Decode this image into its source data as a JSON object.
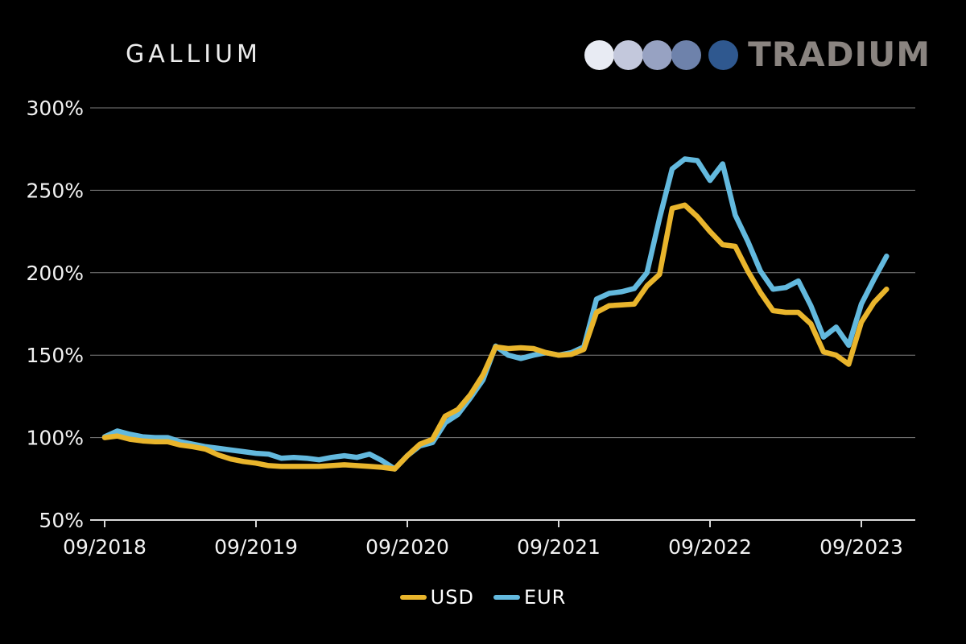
{
  "header": {
    "title": "GALLIUM",
    "logo": {
      "text": "TRADIUM",
      "text_color": "#8a8480",
      "dot_colors": [
        "#e8ebf3",
        "#c3c8dc",
        "#97a2c2",
        "#6e82ab",
        "#2f588f"
      ]
    }
  },
  "chart_data": {
    "type": "line",
    "title": "GALLIUM",
    "x_unit": "month",
    "x_start": "09/2018",
    "x_end": "11/2023",
    "ylim": [
      50,
      300
    ],
    "grid": "horizontal",
    "legend_position": "bottom-center",
    "background_color": "#000000",
    "gridline_color": "#7e7e7e",
    "axis_color": "#d8d8d8",
    "y_ticks": [
      {
        "value": 300,
        "label": "300%"
      },
      {
        "value": 250,
        "label": "250%"
      },
      {
        "value": 200,
        "label": "200%"
      },
      {
        "value": 150,
        "label": "150%"
      },
      {
        "value": 100,
        "label": "100%"
      },
      {
        "value": 50,
        "label": "50%"
      }
    ],
    "x_tick_labels": [
      {
        "index": 0,
        "label": "09/2018"
      },
      {
        "index": 12,
        "label": "09/2019"
      },
      {
        "index": 24,
        "label": "09/2020"
      },
      {
        "index": 36,
        "label": "09/2021"
      },
      {
        "index": 48,
        "label": "09/2022"
      },
      {
        "index": 60,
        "label": "09/2023"
      }
    ],
    "draw_order": [
      "EUR",
      "USD"
    ],
    "series": [
      {
        "name": "USD",
        "color": "#e9b52c",
        "values": [
          100,
          101,
          99,
          98,
          97.5,
          97.5,
          95.5,
          94.5,
          93,
          89.5,
          87,
          85.5,
          84.5,
          83,
          82.5,
          82.5,
          82.5,
          82.5,
          83,
          83.5,
          83,
          82.5,
          82,
          81,
          89,
          96,
          99,
          113,
          117,
          126,
          138,
          155,
          154,
          154.5,
          154,
          151.5,
          150,
          150.5,
          153.5,
          176,
          180,
          180.5,
          181,
          192,
          199,
          239,
          241,
          234,
          225,
          217,
          216,
          201,
          188,
          177,
          176,
          176,
          169,
          152,
          150,
          144.5,
          170,
          182,
          190
        ]
      },
      {
        "name": "EUR",
        "color": "#63b9de",
        "values": [
          100.5,
          104,
          102,
          100.5,
          100,
          100,
          97.5,
          96,
          94.5,
          93.5,
          92.5,
          91.5,
          90.5,
          90,
          87.5,
          88,
          87.5,
          86.5,
          88,
          89,
          88,
          90,
          86,
          81,
          89,
          95,
          97,
          109,
          114,
          124,
          135,
          155.5,
          150,
          148,
          150,
          151.5,
          150,
          151.5,
          155,
          184,
          187.5,
          188.5,
          190.5,
          200,
          233,
          263,
          269,
          268,
          256,
          266,
          235,
          219,
          201,
          190,
          191,
          195,
          180,
          161,
          167,
          156,
          181,
          196,
          210
        ]
      }
    ]
  },
  "legend": {
    "items": [
      {
        "label": "USD"
      },
      {
        "label": "EUR"
      }
    ]
  }
}
